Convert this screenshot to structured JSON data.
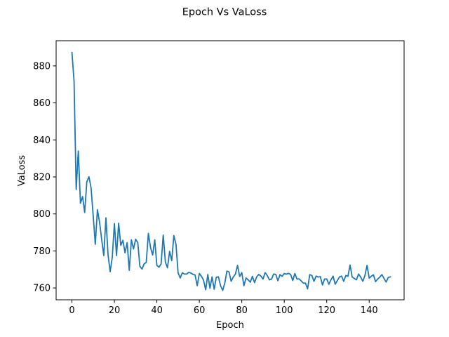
{
  "chart_data": {
    "type": "line",
    "title": "Epoch Vs VaLoss",
    "xlabel": "Epoch",
    "ylabel": "VaLoss",
    "xlim": [
      -7.45,
      156.45
    ],
    "ylim": [
      753.6,
      893.6
    ],
    "xticks": [
      0,
      20,
      40,
      60,
      80,
      100,
      120,
      140
    ],
    "yticks": [
      760,
      780,
      800,
      820,
      840,
      860,
      880
    ],
    "grid": false,
    "line_color": "#1f77b4",
    "series": [
      {
        "values": [
          887.2,
          871.7,
          813.2,
          834.0,
          805.8,
          809.4,
          800.8,
          817.3,
          820.1,
          814.2,
          799.1,
          783.6,
          802.3,
          795.6,
          786.3,
          777.5,
          797.9,
          778.0,
          768.8,
          776.6,
          794.8,
          777.5,
          795.0,
          783.0,
          785.7,
          779.0,
          784.5,
          769.5,
          786.0,
          781.1,
          786.3,
          784.5,
          771.7,
          770.2,
          773.0,
          773.8,
          789.5,
          782.0,
          777.8,
          786.0,
          772.2,
          771.2,
          773.0,
          788.6,
          774.0,
          770.9,
          779.8,
          774.8,
          788.3,
          783.6,
          768.1,
          765.4,
          768.2,
          767.5,
          767.5,
          768.4,
          768.1,
          767.3,
          767.0,
          761.2,
          767.8,
          766.3,
          764.2,
          759.0,
          767.3,
          759.8,
          766.0,
          759.3,
          765.8,
          766.0,
          761.2,
          758.7,
          762.6,
          769.1,
          768.6,
          763.6,
          765.9,
          767.5,
          772.2,
          766.2,
          768.3,
          761.2,
          765.4,
          764.4,
          763.1,
          766.3,
          762.9,
          766.0,
          767.3,
          766.4,
          764.8,
          768.3,
          766.7,
          764.4,
          764.8,
          767.5,
          767.3,
          763.9,
          767.2,
          766.3,
          767.8,
          767.5,
          767.9,
          767.3,
          764.0,
          767.8,
          764.8,
          764.9,
          763.8,
          762.6,
          762.6,
          759.5,
          767.2,
          766.7,
          763.6,
          766.4,
          765.9,
          766.1,
          761.6,
          764.8,
          764.9,
          762.0,
          764.4,
          766.4,
          762.0,
          764.0,
          765.9,
          766.4,
          763.6,
          766.7,
          766.3,
          772.4,
          765.9,
          765.1,
          764.4,
          767.5,
          765.9,
          763.6,
          766.7,
          772.2,
          765.3,
          766.3,
          767.1,
          763.4,
          764.8,
          765.9,
          767.2,
          765.1,
          763.2,
          765.7,
          766.0
        ]
      }
    ]
  }
}
